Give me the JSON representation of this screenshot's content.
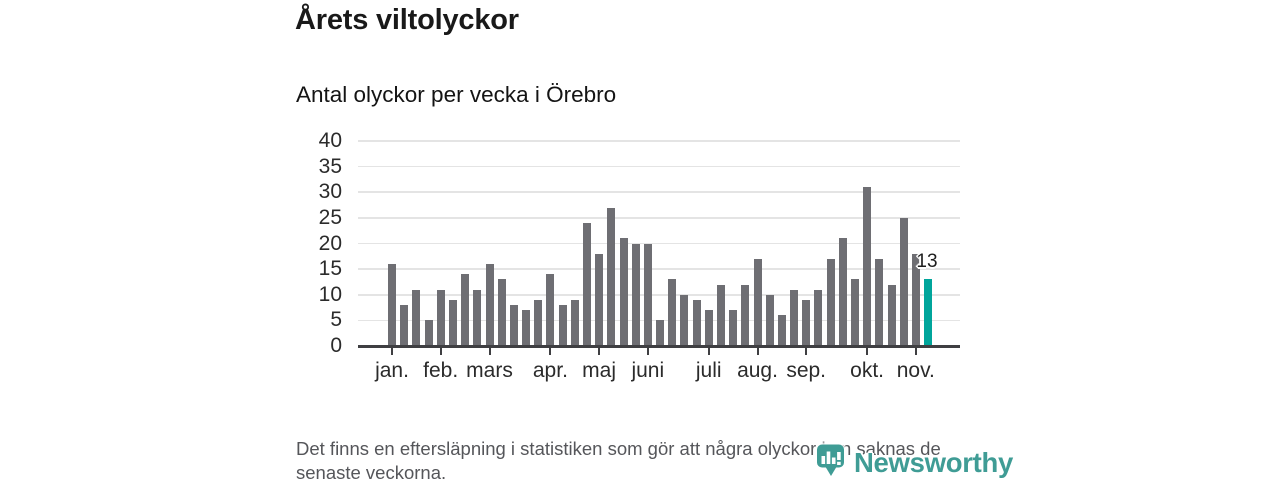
{
  "header": {
    "title": "Årets viltolyckor",
    "subtitle": "Antal olyckor per vecka i Örebro"
  },
  "chart_data": {
    "type": "bar",
    "title": "Årets viltolyckor",
    "subtitle": "Antal olyckor per vecka i Örebro",
    "x_unit": "vecka",
    "first_week": 1,
    "values": [
      16,
      8,
      11,
      5,
      11,
      9,
      14,
      11,
      16,
      13,
      8,
      7,
      9,
      14,
      8,
      9,
      24,
      18,
      27,
      21,
      20,
      20,
      5,
      13,
      10,
      9,
      7,
      12,
      7,
      12,
      17,
      10,
      6,
      11,
      9,
      11,
      17,
      21,
      13,
      31,
      17,
      12,
      25,
      18,
      13
    ],
    "month_ticks": [
      {
        "label": "jan.",
        "week": 1
      },
      {
        "label": "feb.",
        "week": 5
      },
      {
        "label": "mars",
        "week": 9
      },
      {
        "label": "apr.",
        "week": 14
      },
      {
        "label": "maj",
        "week": 18
      },
      {
        "label": "juni",
        "week": 22
      },
      {
        "label": "juli",
        "week": 27
      },
      {
        "label": "aug.",
        "week": 31
      },
      {
        "label": "sep.",
        "week": 35
      },
      {
        "label": "okt.",
        "week": 40
      },
      {
        "label": "nov.",
        "week": 44
      }
    ],
    "ylim": [
      0,
      40
    ],
    "yticks": [
      0,
      5,
      10,
      15,
      20,
      25,
      30,
      35,
      40
    ],
    "grid": "horizontal",
    "legend": "none",
    "highlight_index": 44,
    "annotation": {
      "index": 44,
      "text": "13"
    },
    "colors": {
      "bar": "#6e6e73",
      "highlight": "#00a59b",
      "grid": "#e4e4e4",
      "axis": "#3f3f42",
      "tick_label": "#2b2b2b"
    }
  },
  "footer": {
    "note": "Det finns en eftersläpning i statistiken som gör att några olyckor kan saknas de senaste veckorna."
  },
  "logo": {
    "text": "Newsworthy",
    "color": "#3f9c95",
    "icon": "newsworthy-speech-bubble-chart-icon"
  }
}
